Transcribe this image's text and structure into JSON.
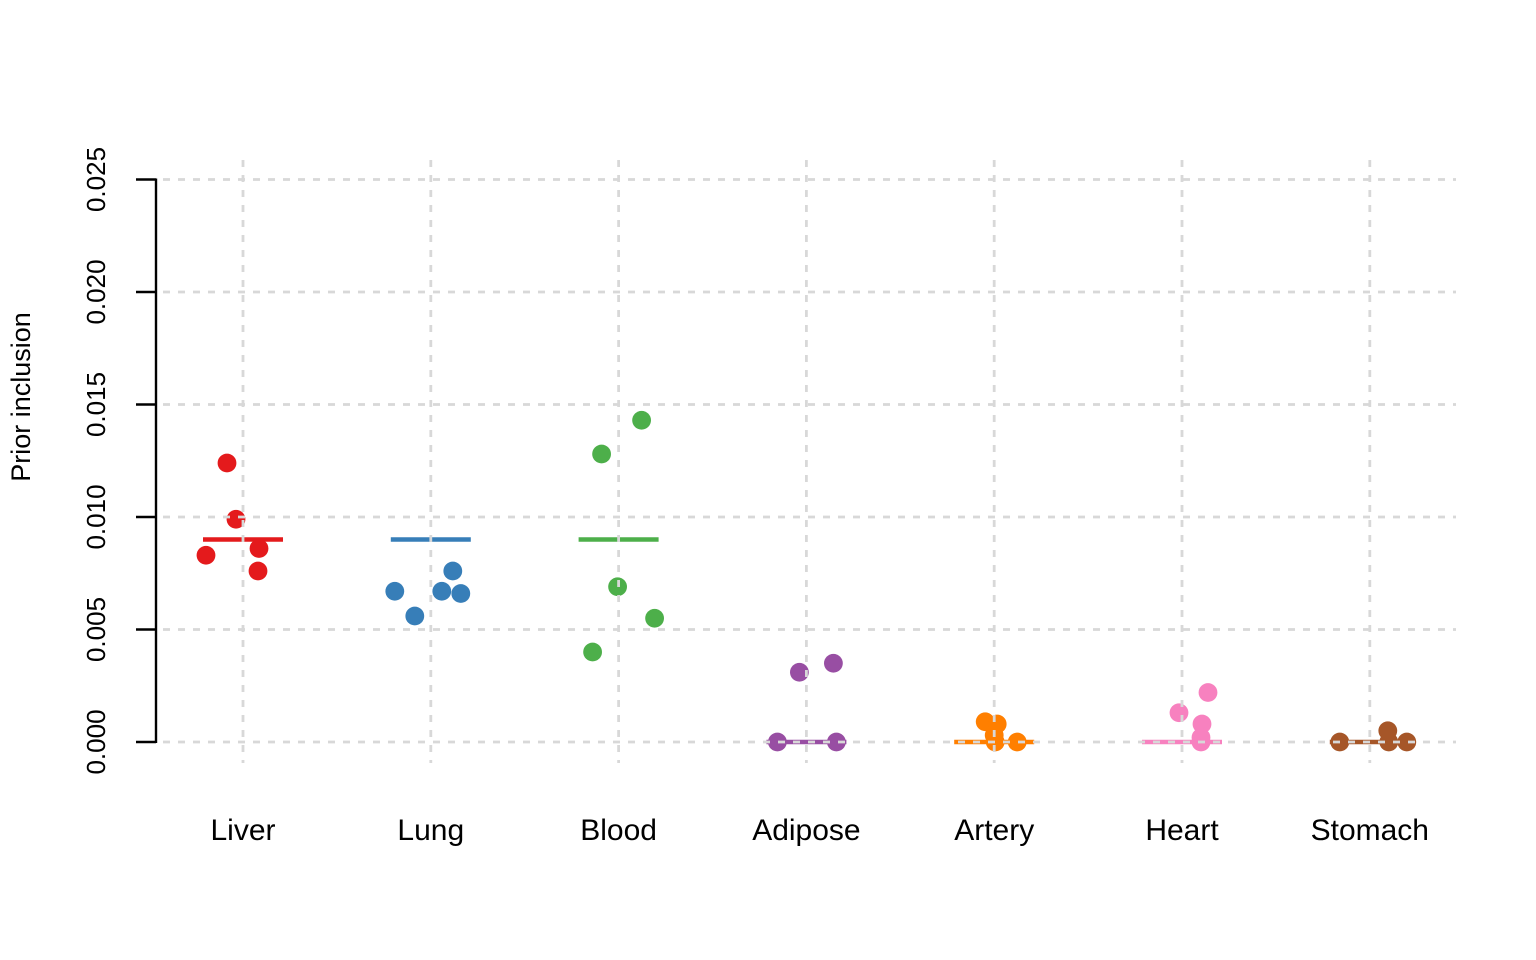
{
  "chart_data": {
    "type": "scatter",
    "subtype": "strip-plot-with-group-median-bars",
    "title": "",
    "xlabel": "",
    "ylabel": "Prior inclusion",
    "ylim": [
      0.0,
      0.025
    ],
    "ytick_labels": [
      "0.000",
      "0.005",
      "0.010",
      "0.015",
      "0.020",
      "0.025"
    ],
    "grid": "dashed light-gray gridlines on both axes, drawn over the data",
    "grid_color": "#d8d8d8",
    "axis_color": "#000000",
    "legend_position": "none",
    "categories": [
      "Liver",
      "Lung",
      "Blood",
      "Adipose",
      "Artery",
      "Heart",
      "Stomach"
    ],
    "series": [
      {
        "name": "Liver",
        "color": "#e41a1c",
        "bar_value": 0.009,
        "points": [
          {
            "dx": -16,
            "value": 0.0124
          },
          {
            "dx": -7,
            "value": 0.0099
          },
          {
            "dx": 16,
            "value": 0.0086
          },
          {
            "dx": -37,
            "value": 0.0083
          },
          {
            "dx": 15,
            "value": 0.0076
          }
        ]
      },
      {
        "name": "Lung",
        "color": "#377eb8",
        "bar_value": 0.009,
        "points": [
          {
            "dx": 22,
            "value": 0.0076
          },
          {
            "dx": -36,
            "value": 0.0067
          },
          {
            "dx": 11,
            "value": 0.0067
          },
          {
            "dx": 30,
            "value": 0.0066
          },
          {
            "dx": -16,
            "value": 0.0056
          }
        ]
      },
      {
        "name": "Blood",
        "color": "#4daf4a",
        "bar_value": 0.009,
        "points": [
          {
            "dx": 23,
            "value": 0.0143
          },
          {
            "dx": -17,
            "value": 0.0128
          },
          {
            "dx": -1,
            "value": 0.0069
          },
          {
            "dx": 36,
            "value": 0.0055
          },
          {
            "dx": -26,
            "value": 0.004
          }
        ]
      },
      {
        "name": "Adipose",
        "color": "#984ea3",
        "bar_value": 0.0,
        "points": [
          {
            "dx": 27,
            "value": 0.0035
          },
          {
            "dx": -7,
            "value": 0.0031
          },
          {
            "dx": -29,
            "value": 0.0
          },
          {
            "dx": 30,
            "value": 0.0
          }
        ]
      },
      {
        "name": "Artery",
        "color": "#ff7f00",
        "bar_value": 0.0,
        "points": [
          {
            "dx": -9,
            "value": 0.0009
          },
          {
            "dx": 3,
            "value": 0.0008
          },
          {
            "dx": 0,
            "value": 0.0003
          },
          {
            "dx": 1,
            "value": 0.0
          },
          {
            "dx": 23,
            "value": 0.0
          }
        ]
      },
      {
        "name": "Heart",
        "color": "#f781bf",
        "bar_value": 0.0,
        "points": [
          {
            "dx": 26,
            "value": 0.0022
          },
          {
            "dx": -3,
            "value": 0.0013
          },
          {
            "dx": 20,
            "value": 0.0008
          },
          {
            "dx": 19,
            "value": 0.0002
          },
          {
            "dx": 19,
            "value": 0.0
          }
        ]
      },
      {
        "name": "Stomach",
        "color": "#a65628",
        "bar_value": 0.0,
        "points": [
          {
            "dx": 18,
            "value": 0.0005
          },
          {
            "dx": -30,
            "value": 0.0
          },
          {
            "dx": 19,
            "value": 0.0
          },
          {
            "dx": 37,
            "value": 0.0
          }
        ]
      }
    ]
  }
}
